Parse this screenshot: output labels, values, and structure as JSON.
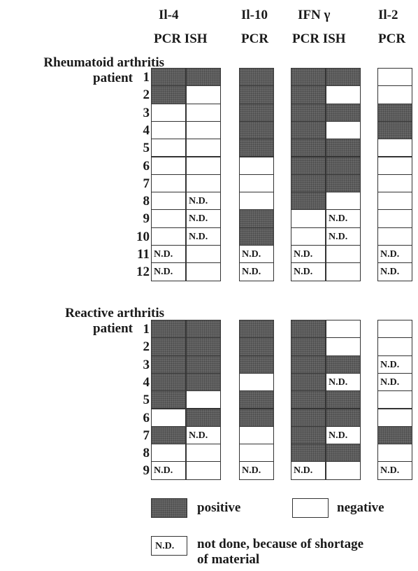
{
  "headers": {
    "markers": [
      "Il-4",
      "Il-10",
      "IFN γ",
      "Il-2"
    ],
    "methods": [
      "PCR ISH",
      "PCR",
      "PCR ISH",
      "PCR"
    ]
  },
  "groups": [
    {
      "label_line1": "Rheumatoid arthritis",
      "label_line2": "patient",
      "patients": [
        {
          "n": "1",
          "cells": [
            "P",
            "P",
            "P",
            "P",
            "P",
            "N"
          ]
        },
        {
          "n": "2",
          "cells": [
            "P",
            "N",
            "P",
            "P",
            "N",
            "N"
          ]
        },
        {
          "n": "3",
          "cells": [
            "N",
            "N",
            "P",
            "P",
            "P",
            "P"
          ]
        },
        {
          "n": "4",
          "cells": [
            "N",
            "N",
            "P",
            "P",
            "N",
            "P"
          ]
        },
        {
          "n": "5",
          "cells": [
            "N",
            "N",
            "P",
            "P",
            "P",
            "N"
          ]
        },
        {
          "n": "6",
          "cells": [
            "N",
            "N",
            "N",
            "P",
            "P",
            "N"
          ]
        },
        {
          "n": "7",
          "cells": [
            "N",
            "N",
            "N",
            "P",
            "P",
            "N"
          ]
        },
        {
          "n": "8",
          "cells": [
            "N",
            "ND",
            "N",
            "P",
            "N",
            "N"
          ]
        },
        {
          "n": "9",
          "cells": [
            "N",
            "ND",
            "P",
            "N",
            "ND",
            "N"
          ]
        },
        {
          "n": "10",
          "cells": [
            "N",
            "ND",
            "P",
            "N",
            "ND",
            "N"
          ]
        },
        {
          "n": "11",
          "cells": [
            "ND",
            "N",
            "ND",
            "ND",
            "N",
            "ND"
          ]
        },
        {
          "n": "12",
          "cells": [
            "ND",
            "N",
            "ND",
            "ND",
            "N",
            "ND"
          ]
        }
      ]
    },
    {
      "label_line1": "Reactive arthritis",
      "label_line2": "patient",
      "patients": [
        {
          "n": "1",
          "cells": [
            "P",
            "P",
            "P",
            "P",
            "N",
            "N"
          ]
        },
        {
          "n": "2",
          "cells": [
            "P",
            "P",
            "P",
            "P",
            "N",
            "N"
          ]
        },
        {
          "n": "3",
          "cells": [
            "P",
            "P",
            "P",
            "P",
            "P",
            "ND"
          ]
        },
        {
          "n": "4",
          "cells": [
            "P",
            "P",
            "N",
            "P",
            "ND",
            "ND"
          ]
        },
        {
          "n": "5",
          "cells": [
            "P",
            "N",
            "P",
            "P",
            "P",
            "N"
          ]
        },
        {
          "n": "6",
          "cells": [
            "N",
            "P",
            "P",
            "P",
            "P",
            "N"
          ]
        },
        {
          "n": "7",
          "cells": [
            "P",
            "ND",
            "N",
            "P",
            "ND",
            "P"
          ]
        },
        {
          "n": "8",
          "cells": [
            "N",
            "N",
            "N",
            "P",
            "P",
            "N"
          ]
        },
        {
          "n": "9",
          "cells": [
            "ND",
            "N",
            "ND",
            "ND",
            "N",
            "ND"
          ]
        }
      ]
    }
  ],
  "nd_text": "N.D.",
  "legend": {
    "positive": "positive",
    "negative": "negative",
    "nd_box": "N.D.",
    "nd_line1": "not done, because of shortage",
    "nd_line2": "of material"
  }
}
